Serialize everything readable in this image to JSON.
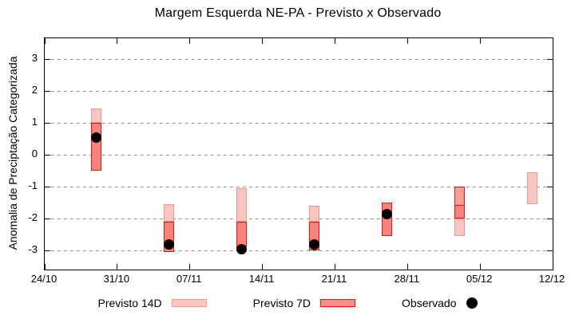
{
  "chart_data": {
    "type": "bar",
    "subtype": "floating-forecast-boxes-with-observed-points",
    "title": "Margem Esquerda NE-PA - Previsto x Observado",
    "ylabel": "Anomalia de Preciptação Categorizada",
    "xlabel": "",
    "x_tick_labels": [
      "24/10",
      "31/10",
      "07/11",
      "14/11",
      "21/11",
      "28/11",
      "05/12",
      "12/12"
    ],
    "x_tick_days": [
      0,
      7,
      14,
      21,
      28,
      35,
      42,
      49
    ],
    "xlim_days": [
      0,
      49
    ],
    "y_ticks": [
      3,
      2,
      1,
      0,
      -1,
      -2,
      -3
    ],
    "ylim": [
      -3.6,
      3.65
    ],
    "grid": "horizontal-dashed",
    "legend_position": "bottom-center",
    "series": [
      {
        "name": "Previsto 14D",
        "type": "box"
      },
      {
        "name": "Previsto 7D",
        "type": "box"
      },
      {
        "name": "Observado",
        "type": "point"
      }
    ],
    "colors": {
      "previsto_14d_fill": "#f9c6c1",
      "previsto_14d_border": "#f0968b",
      "previsto_7d_fill": "#f8837c",
      "previsto_7d_fill_light": "#fb9d97",
      "previsto_7d_border": "#e91414",
      "observado": "#000000",
      "grid": "#9c9c9c",
      "axis": "#000000"
    },
    "points": [
      {
        "date": "29/10",
        "day": 5,
        "previsto_14d_visible": [
          1.45,
          1.0
        ],
        "previsto_7d": [
          1.0,
          -0.5
        ],
        "previsto_7d_divider": null,
        "observado": 0.55
      },
      {
        "date": "05/11",
        "day": 12,
        "previsto_14d_visible": [
          -1.55,
          -2.1
        ],
        "previsto_7d": [
          -2.1,
          -3.05
        ],
        "previsto_7d_divider": null,
        "observado": -2.8
      },
      {
        "date": "12/11",
        "day": 19,
        "previsto_14d_visible": [
          -1.05,
          -2.1
        ],
        "previsto_7d": [
          -2.1,
          -2.9
        ],
        "previsto_7d_divider": null,
        "observado": -2.95
      },
      {
        "date": "19/11",
        "day": 26,
        "previsto_14d_visible": [
          -1.6,
          -2.1
        ],
        "previsto_7d": [
          -2.1,
          -3.0
        ],
        "previsto_7d_divider": null,
        "observado": -2.8
      },
      {
        "date": "26/11",
        "day": 33,
        "previsto_14d_visible": null,
        "previsto_7d": [
          -1.5,
          -2.55
        ],
        "previsto_7d_divider": null,
        "observado": -1.85
      },
      {
        "date": "03/12",
        "day": 40,
        "previsto_14d_visible": [
          -2.0,
          -2.55
        ],
        "previsto_7d": [
          -1.0,
          -2.0
        ],
        "previsto_7d_divider": -1.55,
        "observado": null
      },
      {
        "date": "10/12",
        "day": 47,
        "previsto_14d_visible": [
          -0.55,
          -1.55
        ],
        "previsto_7d": null,
        "previsto_7d_divider": null,
        "observado": null
      }
    ]
  }
}
